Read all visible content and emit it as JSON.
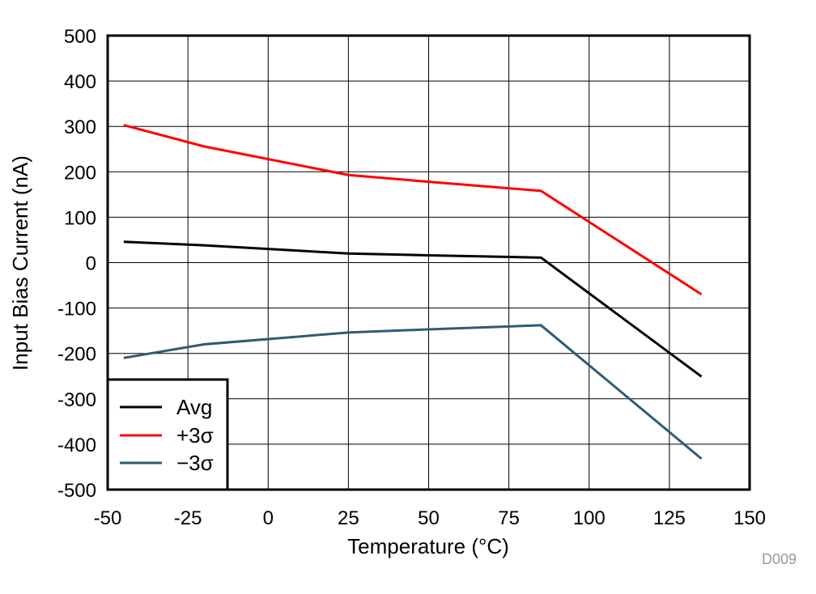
{
  "chart_data": {
    "type": "line",
    "title": "",
    "xlabel": "Temperature (°C)",
    "ylabel": "Input Bias Current (nA)",
    "xlim": [
      -50,
      150
    ],
    "ylim": [
      -500,
      500
    ],
    "xticks": [
      -50,
      -25,
      0,
      25,
      50,
      75,
      100,
      125,
      150
    ],
    "yticks": [
      -500,
      -400,
      -300,
      -200,
      -100,
      0,
      100,
      200,
      300,
      400,
      500
    ],
    "xtick_labels": [
      "-50",
      "-25",
      "0",
      "25",
      "50",
      "75",
      "100",
      "125",
      "150"
    ],
    "ytick_labels": [
      "-500",
      "-400",
      "-300",
      "-200",
      "-100",
      "0",
      "100",
      "200",
      "300",
      "400",
      "500"
    ],
    "grid": true,
    "legend_position": "bottom-left",
    "series": [
      {
        "name": "Avg",
        "color": "#000000",
        "x": [
          -45,
          -20,
          25,
          50,
          85,
          135
        ],
        "values": [
          46,
          38,
          20,
          16,
          11,
          -251
        ]
      },
      {
        "name": "+3σ",
        "color": "#ff0000",
        "x": [
          -45,
          -20,
          25,
          50,
          85,
          135
        ],
        "values": [
          303,
          256,
          193,
          178,
          158,
          -70
        ]
      },
      {
        "name": "−3σ",
        "color": "#2e5b74",
        "x": [
          -45,
          -20,
          25,
          50,
          85,
          135
        ],
        "values": [
          -210,
          -180,
          -154,
          -147,
          -138,
          -432
        ]
      }
    ],
    "annotations": [
      "D009"
    ]
  }
}
